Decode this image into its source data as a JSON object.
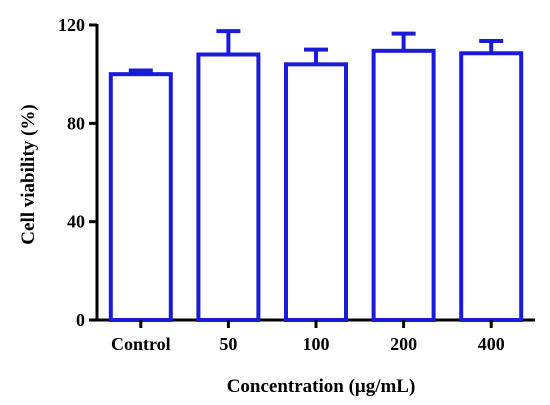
{
  "chart_data": {
    "type": "bar",
    "title": "",
    "xlabel": "Concentration (μg/mL)",
    "ylabel": "Cell viability (%)",
    "categories": [
      "Control",
      "50",
      "100",
      "200",
      "400"
    ],
    "series": [
      {
        "values": [
          100,
          108,
          104,
          109.5,
          108.5
        ],
        "error_upper": [
          1.5,
          9.5,
          6,
          7,
          5
        ]
      }
    ],
    "ylim": [
      0,
      120
    ],
    "yticks": [
      0,
      40,
      80,
      120
    ],
    "grid": false,
    "legend": "none",
    "bar_fill": "#ffffff",
    "bar_edge_color": "#1a1adb",
    "axis_color": "#000000"
  }
}
